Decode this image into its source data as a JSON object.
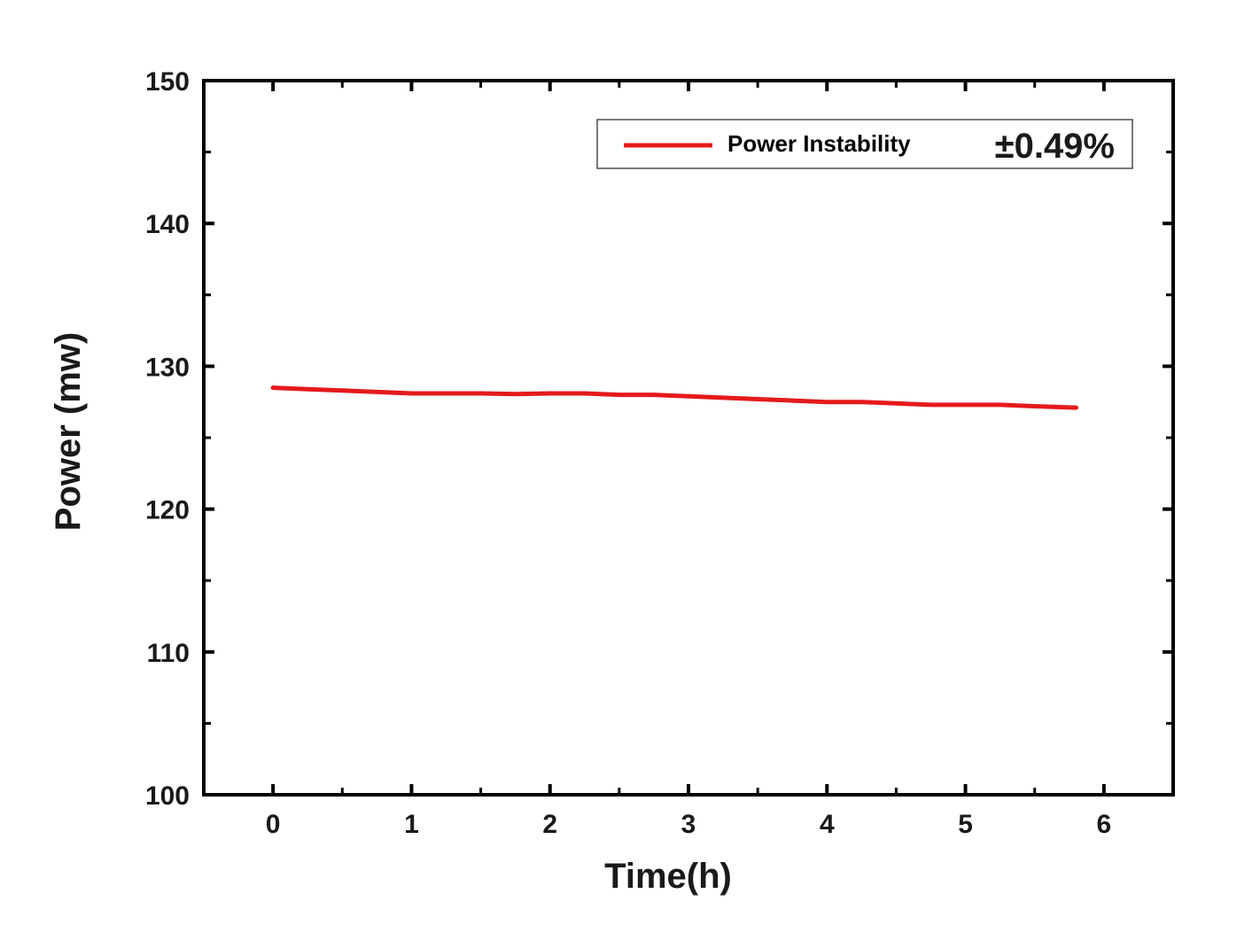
{
  "chart_data": {
    "type": "line",
    "title": "",
    "xlabel": "Time(h)",
    "ylabel": "Power (mw)",
    "xlim": [
      -0.5,
      6.5
    ],
    "ylim": [
      100,
      150
    ],
    "x_ticks": [
      0,
      1,
      2,
      3,
      4,
      5,
      6
    ],
    "y_ticks": [
      100,
      110,
      120,
      130,
      140,
      150
    ],
    "grid": false,
    "legend_position": "top-right",
    "series": [
      {
        "name": "Power Instability",
        "color": "#e41a1c",
        "x": [
          0.0,
          0.25,
          0.5,
          0.75,
          1.0,
          1.25,
          1.5,
          1.75,
          2.0,
          2.25,
          2.5,
          2.75,
          3.0,
          3.25,
          3.5,
          3.75,
          4.0,
          4.25,
          4.5,
          4.75,
          5.0,
          5.25,
          5.5,
          5.8
        ],
        "values": [
          128.5,
          128.4,
          128.3,
          128.2,
          128.1,
          128.1,
          128.1,
          128.05,
          128.1,
          128.1,
          128.0,
          128.0,
          127.9,
          127.8,
          127.7,
          127.6,
          127.5,
          127.5,
          127.4,
          127.3,
          127.3,
          127.3,
          127.2,
          127.1
        ]
      }
    ],
    "annotations": [
      "±0.49%"
    ]
  },
  "style": {
    "axis_color": "#000000",
    "line_color": "#e41a1c"
  }
}
